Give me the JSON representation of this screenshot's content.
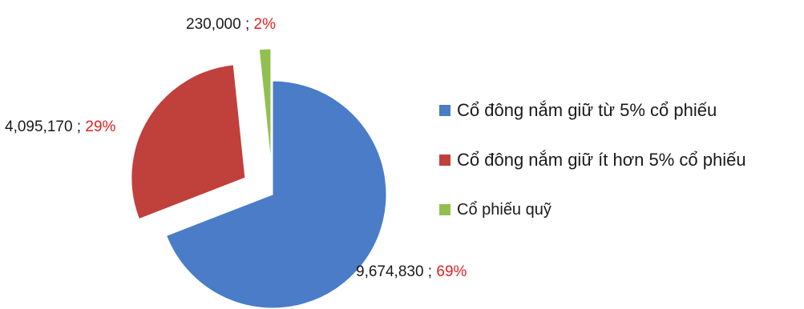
{
  "chart_data": {
    "type": "pie",
    "title": "",
    "slices": [
      {
        "name": "Cổ đông nắm giữ  từ 5% cổ phiếu",
        "value": 9674830,
        "value_label": "9,674,830",
        "percent_label": "69%",
        "color": "#4a7cc8",
        "exploded": false
      },
      {
        "name": "Cổ đông nắm giữ  ít hơn 5% cổ phiếu",
        "value": 4095170,
        "value_label": "4,095,170",
        "percent_label": "29%",
        "color": "#c0403c",
        "exploded": true
      },
      {
        "name": "Cổ phiếu quỹ",
        "value": 230000,
        "value_label": "230,000",
        "percent_label": "2%",
        "color": "#92c050",
        "exploded": true
      }
    ],
    "separator": " ; ",
    "legend_position": "right"
  }
}
